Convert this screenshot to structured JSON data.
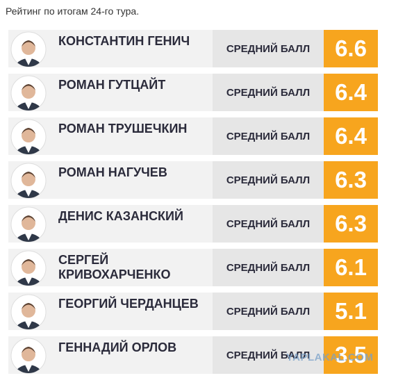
{
  "header": {
    "title": "Рейтинг по итогам 24-го тура."
  },
  "rows": [
    {
      "name": "КОНСТАНТИН ГЕНИЧ",
      "label": "СРЕДНИЙ БАЛЛ",
      "score": 6.6
    },
    {
      "name": "РОМАН ГУТЦАЙТ",
      "label": "СРЕДНИЙ БАЛЛ",
      "score": 6.4
    },
    {
      "name": "РОМАН ТРУШЕЧКИН",
      "label": "СРЕДНИЙ БАЛЛ",
      "score": 6.4
    },
    {
      "name": "РОМАН НАГУЧЕВ",
      "label": "СРЕДНИЙ БАЛЛ",
      "score": 6.3
    },
    {
      "name": "ДЕНИС КАЗАНСКИЙ",
      "label": "СРЕДНИЙ БАЛЛ",
      "score": 6.3
    },
    {
      "name": "СЕРГЕЙ\nКРИВОХАРЧЕНКО",
      "label": "СРЕДНИЙ БАЛЛ",
      "score": 6.1
    },
    {
      "name": "ГЕОРГИЙ ЧЕРДАНЦЕВ",
      "label": "СРЕДНИЙ БАЛЛ",
      "score": 5.1
    },
    {
      "name": "ГЕННАДИЙ ОРЛОВ",
      "label": "СРЕДНИЙ БАЛЛ",
      "score": 3.5
    }
  ],
  "watermark": "YAPLAKAL.COM"
}
